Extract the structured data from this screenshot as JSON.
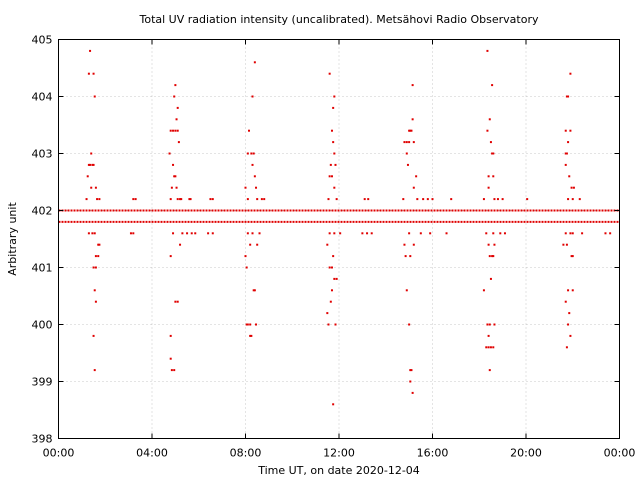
{
  "chart_data": {
    "type": "scatter",
    "title": "Total UV radiation intensity (uncalibrated). Metsähovi Radio Observatory",
    "xlabel": "Time UT, on date 2020-12-04",
    "ylabel": "Arbitrary unit",
    "xlim": [
      0,
      24
    ],
    "ylim": [
      398,
      405
    ],
    "x_ticks": [
      0,
      4,
      8,
      12,
      16,
      20,
      24
    ],
    "x_tick_labels": [
      "00:00",
      "04:00",
      "08:00",
      "12:00",
      "16:00",
      "20:00",
      "00:00"
    ],
    "y_ticks": [
      398,
      399,
      400,
      401,
      402,
      403,
      404,
      405
    ],
    "y_tick_labels": [
      "398",
      "399",
      "400",
      "401",
      "402",
      "403",
      "404",
      "405"
    ],
    "grid": true,
    "marker_color": "#e00000",
    "baseline_levels": [
      401.8,
      402.0
    ],
    "baseline_x_range": [
      0,
      24
    ],
    "series": [
      {
        "points": [
          [
            1.35,
            404.8
          ],
          [
            1.3,
            404.4
          ],
          [
            1.5,
            404.4
          ],
          [
            1.55,
            404.0
          ],
          [
            1.4,
            403.0
          ],
          [
            1.3,
            402.8
          ],
          [
            1.35,
            402.8
          ],
          [
            1.45,
            402.8
          ],
          [
            1.5,
            402.8
          ],
          [
            1.25,
            402.6
          ],
          [
            1.4,
            402.4
          ],
          [
            1.6,
            402.4
          ],
          [
            1.2,
            402.2
          ],
          [
            1.65,
            402.2
          ],
          [
            1.75,
            402.2
          ],
          [
            1.3,
            401.6
          ],
          [
            1.45,
            401.6
          ],
          [
            1.55,
            401.6
          ],
          [
            1.6,
            401.2
          ],
          [
            1.7,
            401.2
          ],
          [
            1.5,
            401.0
          ],
          [
            1.6,
            401.0
          ],
          [
            1.7,
            401.4
          ],
          [
            1.75,
            401.4
          ],
          [
            1.55,
            400.6
          ],
          [
            1.6,
            400.4
          ],
          [
            1.5,
            399.8
          ],
          [
            1.55,
            399.2
          ],
          [
            3.2,
            402.2
          ],
          [
            3.3,
            402.2
          ],
          [
            3.1,
            401.6
          ],
          [
            3.2,
            401.6
          ],
          [
            5.0,
            404.2
          ],
          [
            4.95,
            404.0
          ],
          [
            5.1,
            403.8
          ],
          [
            5.05,
            403.6
          ],
          [
            4.8,
            403.4
          ],
          [
            4.9,
            403.4
          ],
          [
            5.0,
            403.4
          ],
          [
            5.1,
            403.4
          ],
          [
            5.15,
            403.2
          ],
          [
            4.75,
            403.0
          ],
          [
            4.9,
            402.8
          ],
          [
            5.0,
            402.6
          ],
          [
            4.95,
            402.6
          ],
          [
            4.85,
            402.4
          ],
          [
            5.05,
            402.4
          ],
          [
            4.8,
            402.2
          ],
          [
            5.1,
            402.2
          ],
          [
            5.2,
            402.2
          ],
          [
            5.25,
            402.2
          ],
          [
            5.6,
            402.2
          ],
          [
            5.65,
            402.2
          ],
          [
            6.5,
            402.2
          ],
          [
            6.6,
            402.2
          ],
          [
            4.9,
            401.6
          ],
          [
            5.3,
            401.6
          ],
          [
            5.5,
            401.6
          ],
          [
            5.7,
            401.6
          ],
          [
            5.85,
            401.6
          ],
          [
            6.4,
            401.6
          ],
          [
            6.6,
            401.6
          ],
          [
            5.2,
            401.4
          ],
          [
            4.8,
            401.2
          ],
          [
            5.0,
            400.4
          ],
          [
            5.1,
            400.4
          ],
          [
            4.8,
            399.8
          ],
          [
            4.8,
            399.4
          ],
          [
            4.85,
            399.2
          ],
          [
            4.95,
            399.2
          ],
          [
            8.4,
            404.6
          ],
          [
            8.3,
            404.0
          ],
          [
            8.15,
            403.4
          ],
          [
            8.1,
            403.0
          ],
          [
            8.25,
            403.0
          ],
          [
            8.35,
            403.0
          ],
          [
            8.3,
            402.8
          ],
          [
            8.4,
            402.6
          ],
          [
            8.0,
            402.4
          ],
          [
            8.45,
            402.4
          ],
          [
            8.1,
            402.2
          ],
          [
            8.5,
            402.2
          ],
          [
            8.7,
            402.2
          ],
          [
            8.8,
            402.2
          ],
          [
            8.1,
            401.6
          ],
          [
            8.3,
            401.6
          ],
          [
            8.6,
            401.6
          ],
          [
            8.2,
            401.4
          ],
          [
            8.5,
            401.4
          ],
          [
            8.0,
            401.2
          ],
          [
            8.05,
            401.0
          ],
          [
            8.35,
            400.6
          ],
          [
            8.4,
            400.6
          ],
          [
            8.05,
            400.0
          ],
          [
            8.1,
            400.0
          ],
          [
            8.2,
            400.0
          ],
          [
            8.45,
            400.0
          ],
          [
            8.2,
            399.8
          ],
          [
            8.25,
            399.8
          ],
          [
            11.6,
            404.4
          ],
          [
            11.8,
            404.0
          ],
          [
            11.75,
            403.8
          ],
          [
            11.7,
            403.4
          ],
          [
            11.75,
            403.2
          ],
          [
            11.8,
            403.0
          ],
          [
            11.65,
            402.8
          ],
          [
            11.85,
            402.8
          ],
          [
            11.6,
            402.6
          ],
          [
            11.7,
            402.6
          ],
          [
            11.8,
            402.4
          ],
          [
            11.55,
            402.2
          ],
          [
            11.9,
            402.2
          ],
          [
            11.6,
            401.6
          ],
          [
            11.8,
            401.6
          ],
          [
            12.05,
            401.6
          ],
          [
            11.5,
            401.4
          ],
          [
            11.75,
            401.2
          ],
          [
            11.6,
            401.0
          ],
          [
            11.7,
            401.0
          ],
          [
            11.8,
            400.8
          ],
          [
            11.9,
            400.8
          ],
          [
            11.7,
            400.6
          ],
          [
            11.65,
            400.4
          ],
          [
            11.5,
            400.2
          ],
          [
            11.55,
            400.0
          ],
          [
            11.85,
            400.0
          ],
          [
            11.75,
            398.6
          ],
          [
            13.1,
            402.2
          ],
          [
            13.25,
            402.2
          ],
          [
            13.0,
            401.6
          ],
          [
            13.2,
            401.6
          ],
          [
            13.4,
            401.6
          ],
          [
            15.15,
            404.2
          ],
          [
            15.15,
            403.6
          ],
          [
            15.0,
            403.4
          ],
          [
            15.05,
            403.4
          ],
          [
            15.1,
            403.4
          ],
          [
            14.8,
            403.2
          ],
          [
            14.9,
            403.2
          ],
          [
            15.0,
            403.2
          ],
          [
            15.2,
            403.2
          ],
          [
            14.9,
            403.0
          ],
          [
            14.95,
            402.8
          ],
          [
            15.3,
            402.6
          ],
          [
            15.2,
            402.4
          ],
          [
            14.75,
            402.2
          ],
          [
            15.35,
            402.2
          ],
          [
            15.6,
            402.2
          ],
          [
            15.8,
            402.2
          ],
          [
            16.0,
            402.2
          ],
          [
            16.8,
            402.2
          ],
          [
            15.0,
            401.6
          ],
          [
            15.5,
            401.6
          ],
          [
            15.9,
            401.6
          ],
          [
            16.6,
            401.6
          ],
          [
            14.8,
            401.4
          ],
          [
            15.2,
            401.4
          ],
          [
            14.85,
            401.2
          ],
          [
            15.05,
            401.2
          ],
          [
            14.9,
            400.6
          ],
          [
            15.0,
            400.0
          ],
          [
            15.05,
            399.2
          ],
          [
            15.1,
            399.2
          ],
          [
            15.05,
            399.0
          ],
          [
            15.15,
            398.8
          ],
          [
            18.35,
            404.8
          ],
          [
            18.55,
            404.2
          ],
          [
            18.45,
            403.6
          ],
          [
            18.35,
            403.4
          ],
          [
            18.5,
            403.2
          ],
          [
            18.55,
            403.0
          ],
          [
            18.6,
            403.0
          ],
          [
            18.4,
            402.6
          ],
          [
            18.6,
            402.6
          ],
          [
            18.4,
            402.4
          ],
          [
            18.2,
            402.2
          ],
          [
            18.65,
            402.2
          ],
          [
            18.8,
            402.2
          ],
          [
            19.0,
            402.2
          ],
          [
            20.05,
            402.2
          ],
          [
            18.3,
            401.6
          ],
          [
            18.6,
            401.6
          ],
          [
            18.9,
            401.6
          ],
          [
            19.1,
            401.6
          ],
          [
            18.4,
            401.4
          ],
          [
            18.65,
            401.4
          ],
          [
            18.45,
            401.2
          ],
          [
            18.55,
            401.2
          ],
          [
            18.6,
            401.2
          ],
          [
            18.5,
            400.8
          ],
          [
            18.2,
            400.6
          ],
          [
            18.35,
            400.0
          ],
          [
            18.45,
            400.0
          ],
          [
            18.65,
            400.0
          ],
          [
            18.4,
            399.8
          ],
          [
            18.3,
            399.6
          ],
          [
            18.4,
            399.6
          ],
          [
            18.5,
            399.6
          ],
          [
            18.6,
            399.6
          ],
          [
            18.45,
            399.2
          ],
          [
            21.9,
            404.4
          ],
          [
            21.75,
            404.0
          ],
          [
            21.8,
            404.0
          ],
          [
            21.7,
            403.4
          ],
          [
            21.9,
            403.4
          ],
          [
            21.7,
            403.0
          ],
          [
            21.75,
            403.0
          ],
          [
            21.8,
            403.2
          ],
          [
            21.7,
            402.8
          ],
          [
            21.85,
            402.6
          ],
          [
            21.95,
            402.4
          ],
          [
            22.05,
            402.4
          ],
          [
            21.8,
            402.2
          ],
          [
            22.0,
            402.2
          ],
          [
            22.3,
            402.2
          ],
          [
            21.7,
            401.6
          ],
          [
            21.9,
            401.6
          ],
          [
            22.0,
            401.6
          ],
          [
            22.4,
            401.6
          ],
          [
            21.6,
            401.4
          ],
          [
            21.75,
            401.4
          ],
          [
            21.95,
            401.2
          ],
          [
            22.0,
            401.2
          ],
          [
            21.8,
            400.6
          ],
          [
            22.0,
            400.6
          ],
          [
            21.7,
            400.4
          ],
          [
            21.85,
            400.2
          ],
          [
            21.8,
            400.0
          ],
          [
            21.9,
            399.8
          ],
          [
            21.75,
            399.6
          ],
          [
            23.4,
            401.6
          ],
          [
            23.6,
            401.6
          ]
        ]
      }
    ]
  }
}
